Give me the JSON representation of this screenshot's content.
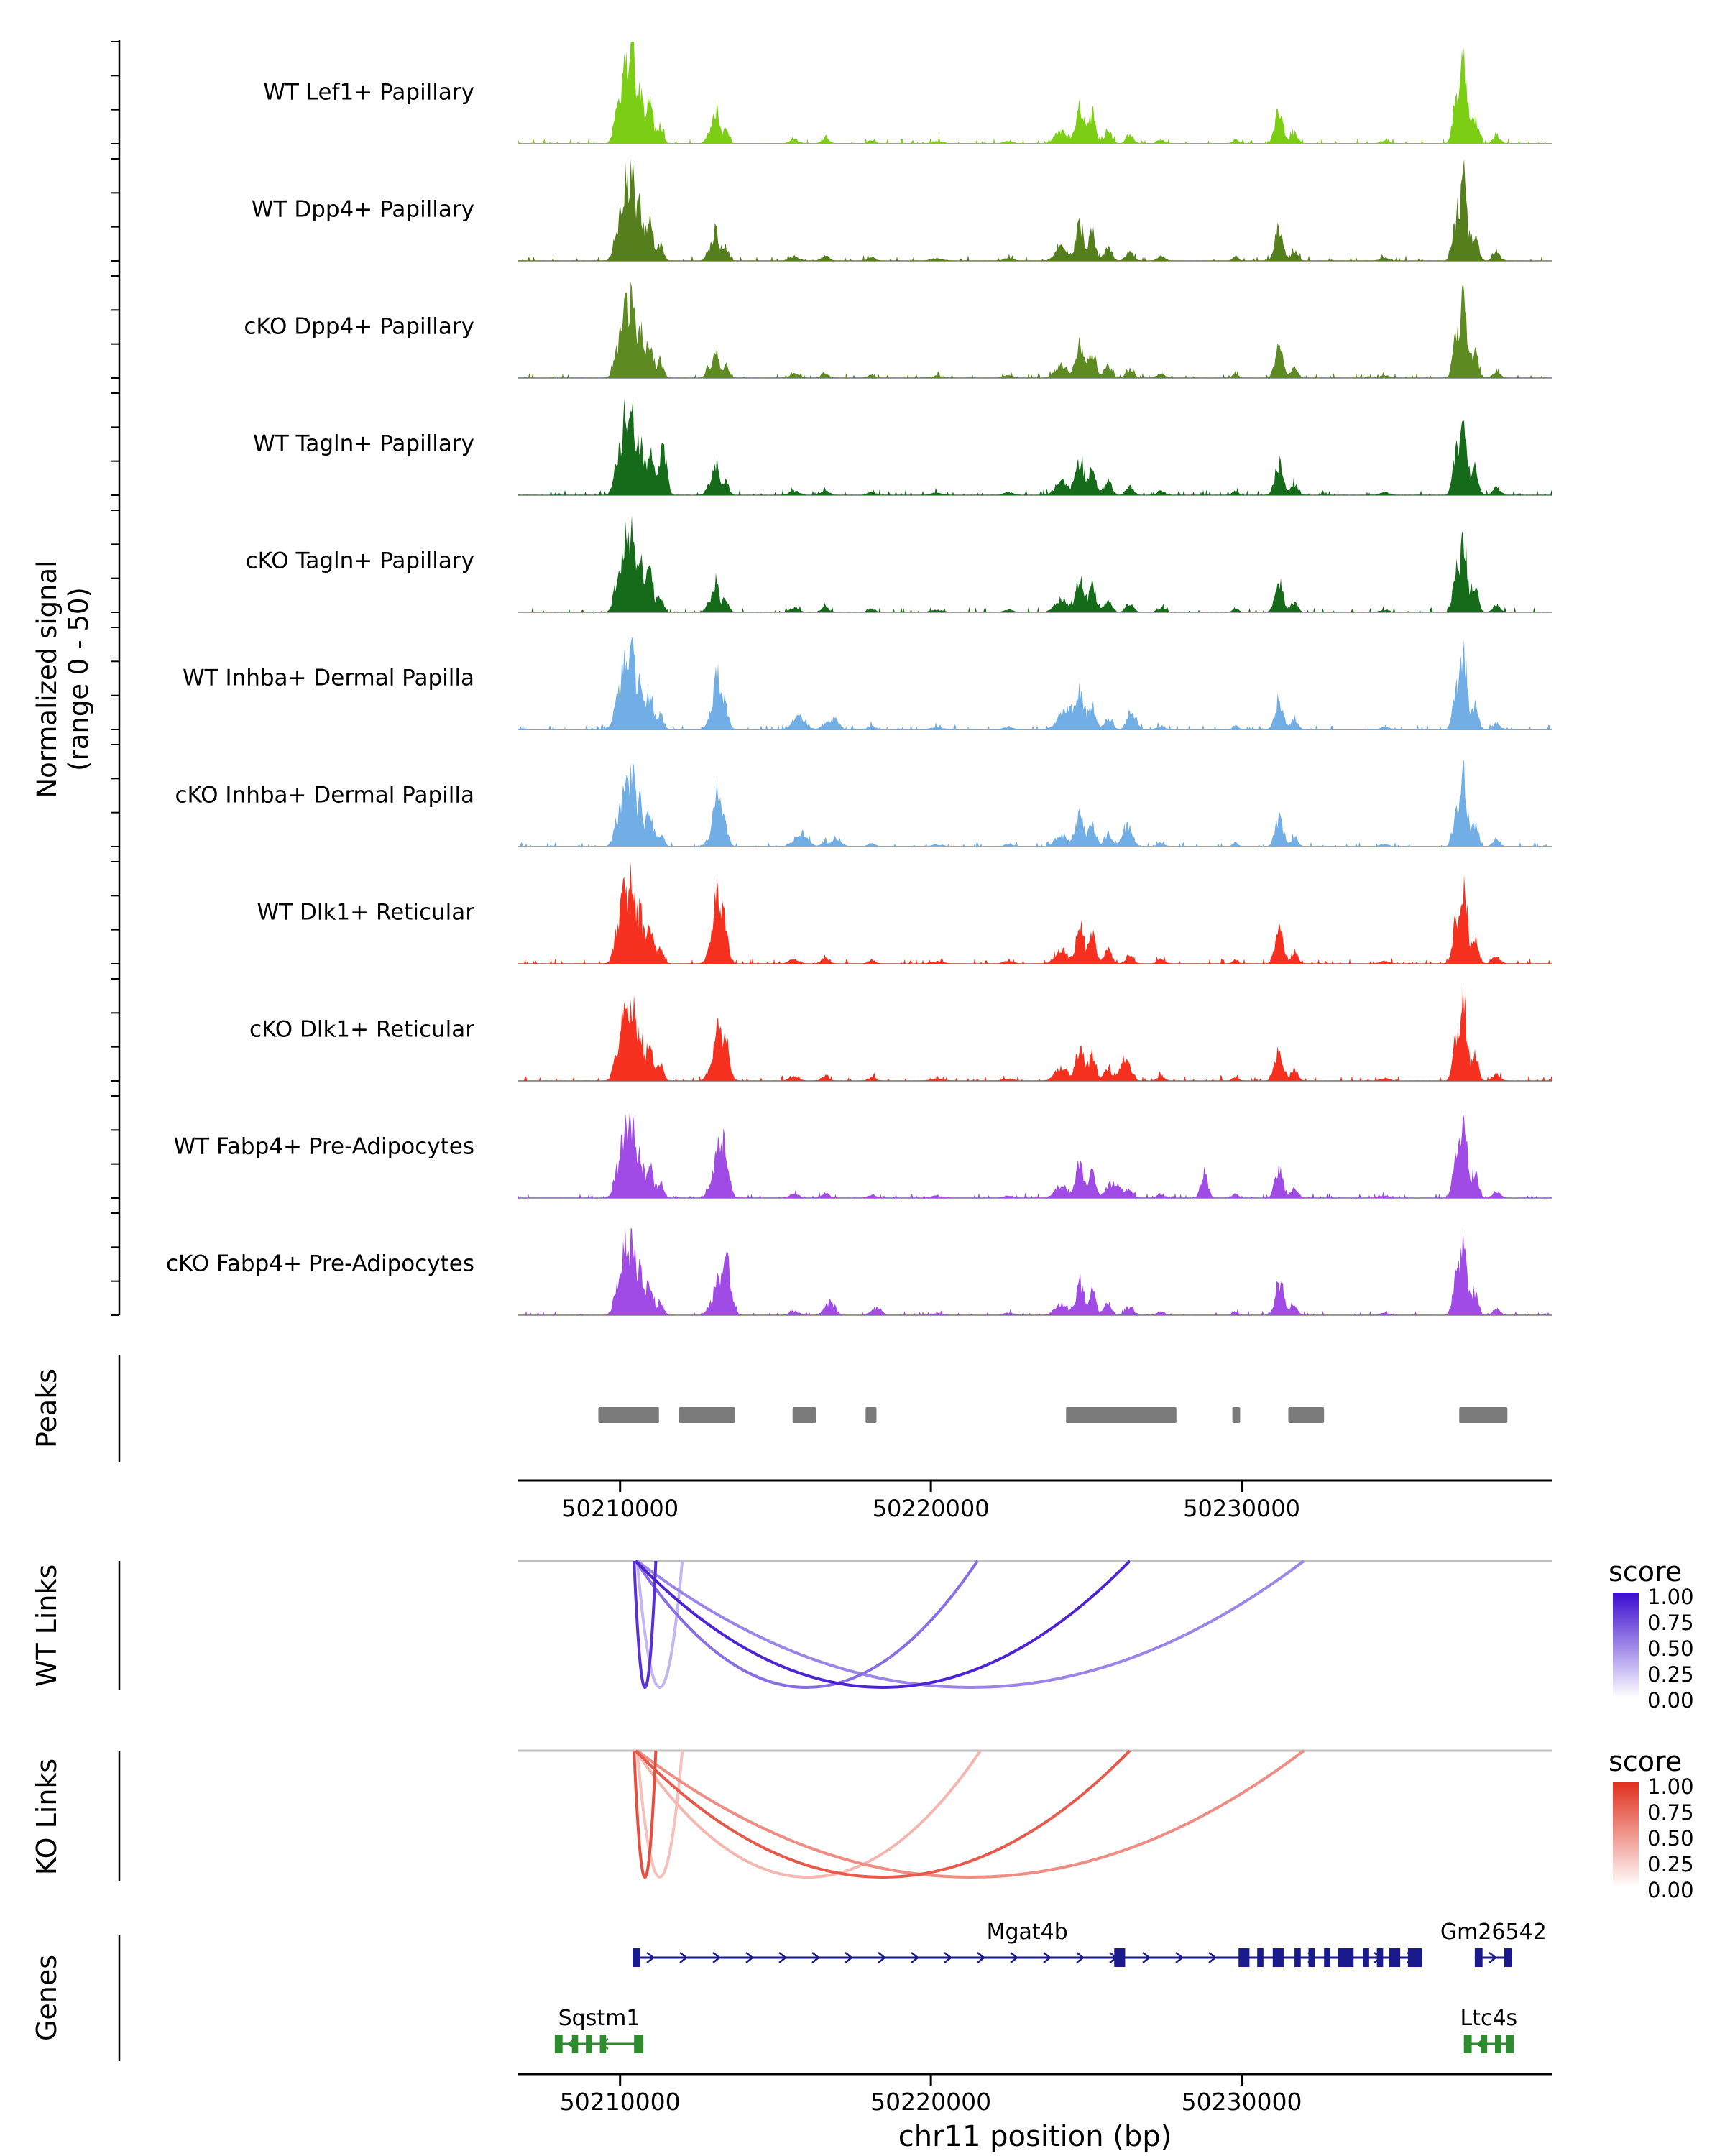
{
  "figure": {
    "xlabel": "chr11 position (bp)",
    "x_ticks": [
      "50210000",
      "50220000",
      "50230000"
    ],
    "x_tick_values": [
      50210000,
      50220000,
      50230000
    ],
    "chromosome": "chr11",
    "region_start": 50206700,
    "region_end": 50240000
  },
  "sections": {
    "signal_axis_line1": "Normalized signal",
    "signal_axis_line2": "(range 0 - 50)",
    "peaks": "Peaks",
    "wt_links": "WT Links",
    "ko_links": "KO Links",
    "genes": "Genes"
  },
  "legends": {
    "wt": {
      "title": "score",
      "ticks": [
        "1.00",
        "0.75",
        "0.50",
        "0.25",
        "0.00"
      ],
      "color_high": "#3A0BCF",
      "color_low": "#FFFFFF"
    },
    "ko": {
      "title": "score",
      "ticks": [
        "1.00",
        "0.75",
        "0.50",
        "0.25",
        "0.00"
      ],
      "color_high": "#E0301E",
      "color_low": "#FFFFFF"
    }
  },
  "chart_data": {
    "type": "area",
    "subtype": "genome-coverage-tracks",
    "region": "chr11:50206700-50240000",
    "signal_range": [
      0,
      50
    ],
    "x_axis": {
      "min": 50206700,
      "max": 50240000,
      "ticks": [
        50210000,
        50220000,
        50230000
      ]
    },
    "base_bumps": [
      [
        50209900,
        0.3,
        120
      ],
      [
        50210150,
        0.8,
        110
      ],
      [
        50210400,
        0.95,
        90
      ],
      [
        50210650,
        0.55,
        90
      ],
      [
        50210950,
        0.45,
        110
      ],
      [
        50211300,
        0.18,
        100
      ],
      [
        50212900,
        0.12,
        120
      ],
      [
        50213100,
        0.32,
        90
      ],
      [
        50213400,
        0.15,
        100
      ],
      [
        50215600,
        0.05,
        150
      ],
      [
        50216600,
        0.06,
        120
      ],
      [
        50218100,
        0.04,
        120
      ],
      [
        50220200,
        0.025,
        200
      ],
      [
        50222500,
        0.03,
        150
      ],
      [
        50224200,
        0.15,
        200
      ],
      [
        50224800,
        0.4,
        130
      ],
      [
        50225200,
        0.3,
        110
      ],
      [
        50225700,
        0.15,
        120
      ],
      [
        50226400,
        0.1,
        120
      ],
      [
        50227400,
        0.05,
        120
      ],
      [
        50229800,
        0.05,
        90
      ],
      [
        50231200,
        0.35,
        130
      ],
      [
        50231700,
        0.12,
        110
      ],
      [
        50234600,
        0.03,
        150
      ],
      [
        50236900,
        0.45,
        110
      ],
      [
        50237150,
        0.88,
        100
      ],
      [
        50237500,
        0.3,
        110
      ],
      [
        50238200,
        0.08,
        120
      ]
    ],
    "tracks": [
      {
        "label": "WT Lef1+ Papillary",
        "color": "#7BCE13",
        "amp": 1.0,
        "extra_bumps": []
      },
      {
        "label": "WT Dpp4+ Papillary",
        "color": "#557F1D",
        "amp": 1.0,
        "extra_bumps": []
      },
      {
        "label": "cKO Dpp4+ Papillary",
        "color": "#5E8A22",
        "amp": 0.95,
        "extra_bumps": []
      },
      {
        "label": "WT Tagln+ Papillary",
        "color": "#166B1A",
        "amp": 1.0,
        "extra_bumps": [
          [
            50211400,
            0.4,
            110
          ]
        ]
      },
      {
        "label": "cKO Tagln+ Papillary",
        "color": "#166B1A",
        "amp": 0.95,
        "extra_bumps": []
      },
      {
        "label": "WT Inhba+ Dermal Papilla",
        "color": "#72AEE6",
        "amp": 0.9,
        "extra_bumps": [
          [
            50213200,
            0.45,
            150
          ],
          [
            50215800,
            0.14,
            180
          ],
          [
            50216900,
            0.12,
            140
          ],
          [
            50224500,
            0.18,
            180
          ],
          [
            50226500,
            0.14,
            140
          ]
        ]
      },
      {
        "label": "cKO Inhba+ Dermal Papilla",
        "color": "#72AEE6",
        "amp": 0.85,
        "extra_bumps": [
          [
            50213200,
            0.4,
            150
          ],
          [
            50215900,
            0.16,
            170
          ],
          [
            50217000,
            0.1,
            140
          ],
          [
            50226300,
            0.18,
            160
          ]
        ]
      },
      {
        "label": "WT Dlk1+ Reticular",
        "color": "#F6301E",
        "amp": 1.0,
        "extra_bumps": [
          [
            50213200,
            0.5,
            160
          ]
        ]
      },
      {
        "label": "cKO Dlk1+ Reticular",
        "color": "#F6301E",
        "amp": 0.95,
        "extra_bumps": [
          [
            50213300,
            0.45,
            160
          ],
          [
            50226200,
            0.2,
            140
          ]
        ]
      },
      {
        "label": "WT Fabp4+ Pre-Adipocytes",
        "color": "#A14BE6",
        "amp": 0.9,
        "extra_bumps": [
          [
            50213300,
            0.55,
            160
          ],
          [
            50226000,
            0.18,
            130
          ],
          [
            50228800,
            0.32,
            110
          ]
        ]
      },
      {
        "label": "cKO Fabp4+ Pre-Adipocytes",
        "color": "#A14BE6",
        "amp": 0.85,
        "extra_bumps": [
          [
            50213400,
            0.6,
            160
          ],
          [
            50216800,
            0.14,
            140
          ],
          [
            50218300,
            0.1,
            120
          ],
          [
            50231300,
            0.12,
            140
          ]
        ]
      }
    ],
    "peaks": [
      [
        50209300,
        50211250
      ],
      [
        50211900,
        50213700
      ],
      [
        50215550,
        50216300
      ],
      [
        50217900,
        50218250
      ],
      [
        50224350,
        50227900
      ],
      [
        50229700,
        50229950
      ],
      [
        50231500,
        50232650
      ],
      [
        50237000,
        50238550
      ]
    ],
    "wt_links": [
      {
        "from": 50210450,
        "to": 50211150,
        "score": 0.85
      },
      {
        "from": 50210550,
        "to": 50212000,
        "score": 0.3
      },
      {
        "from": 50210500,
        "to": 50221500,
        "score": 0.6
      },
      {
        "from": 50210500,
        "to": 50226400,
        "score": 0.9
      },
      {
        "from": 50210550,
        "to": 50232000,
        "score": 0.5
      }
    ],
    "ko_links": [
      {
        "from": 50210450,
        "to": 50211150,
        "score": 0.85
      },
      {
        "from": 50210550,
        "to": 50212000,
        "score": 0.3
      },
      {
        "from": 50210500,
        "to": 50221600,
        "score": 0.35
      },
      {
        "from": 50210500,
        "to": 50226400,
        "score": 0.8
      },
      {
        "from": 50210550,
        "to": 50232000,
        "score": 0.55
      }
    ],
    "genes": [
      {
        "name": "Mgat4b",
        "color": "#1A1A8C",
        "strand": "+",
        "row": 0,
        "start": 50210400,
        "end": 50235800,
        "exons": [
          [
            50210400,
            50210650
          ],
          [
            50225900,
            50226250
          ],
          [
            50229900,
            50230250
          ],
          [
            50230500,
            50230700
          ],
          [
            50231000,
            50231350
          ],
          [
            50231700,
            50231900
          ],
          [
            50232150,
            50232350
          ],
          [
            50232650,
            50232850
          ],
          [
            50233100,
            50233600
          ],
          [
            50233900,
            50234100
          ],
          [
            50234350,
            50234550
          ],
          [
            50234750,
            50235100
          ],
          [
            50235350,
            50235800
          ]
        ]
      },
      {
        "name": "Gm26542",
        "color": "#1A1A8C",
        "strand": "+",
        "row": 0,
        "start": 50237500,
        "end": 50238700,
        "exons": [
          [
            50237500,
            50237750
          ],
          [
            50238450,
            50238700
          ]
        ]
      },
      {
        "name": "Sqstm1",
        "color": "#2E8B2E",
        "strand": "-",
        "row": 1,
        "start": 50207900,
        "end": 50210750,
        "exons": [
          [
            50207900,
            50208150
          ],
          [
            50208450,
            50208650
          ],
          [
            50208900,
            50209100
          ],
          [
            50209350,
            50209550
          ],
          [
            50210450,
            50210750
          ]
        ]
      },
      {
        "name": "Ltc4s",
        "color": "#2E8B2E",
        "strand": "-",
        "row": 1,
        "start": 50237150,
        "end": 50238750,
        "exons": [
          [
            50237150,
            50237400
          ],
          [
            50237700,
            50237900
          ],
          [
            50238150,
            50238350
          ],
          [
            50238500,
            50238750
          ]
        ]
      }
    ]
  }
}
